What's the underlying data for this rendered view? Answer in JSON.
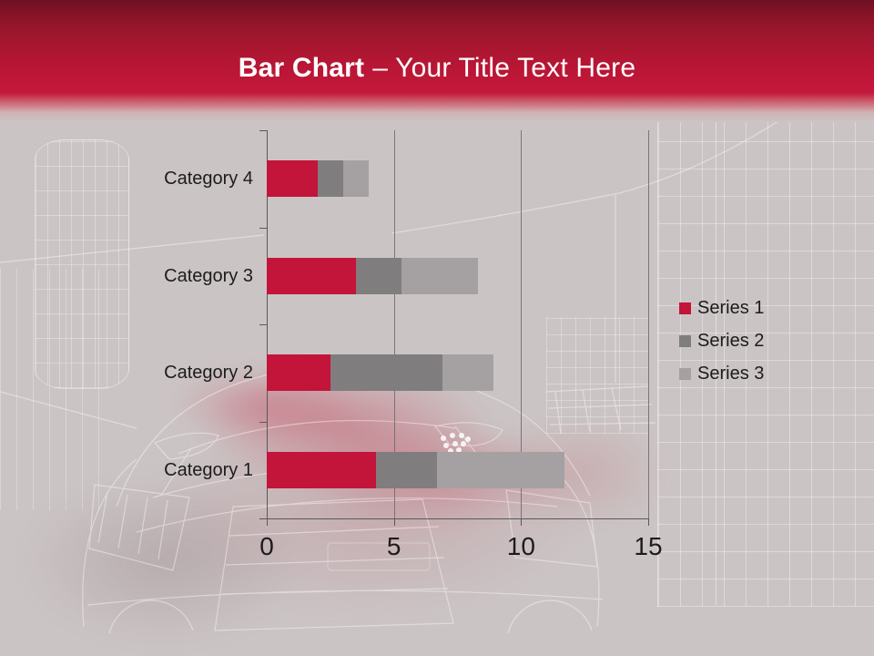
{
  "header": {
    "title_bold": "Bar Chart",
    "title_rest": "– Your Title Text Here"
  },
  "colors": {
    "banner_red": "#c21739",
    "background": "#cbc4c5",
    "axis": "#595959",
    "text": "#1c1c1c",
    "title_text": "#ffffff"
  },
  "chart_data": {
    "type": "bar",
    "orientation": "horizontal",
    "stacked": true,
    "title": "",
    "xlabel": "",
    "ylabel": "",
    "categories": [
      "Category 1",
      "Category 2",
      "Category 3",
      "Category 4"
    ],
    "category_order_top_to_bottom": [
      "Category 4",
      "Category 3",
      "Category 2",
      "Category 1"
    ],
    "series": [
      {
        "name": "Series 1",
        "color": "#c3143a",
        "values": [
          4.3,
          2.5,
          3.5,
          2
        ]
      },
      {
        "name": "Series 2",
        "color": "#807d7e",
        "values": [
          2.4,
          4.4,
          1.8,
          1
        ]
      },
      {
        "name": "Series 3",
        "color": "#a5a1a2",
        "values": [
          5,
          2,
          3,
          1
        ]
      }
    ],
    "xlim": [
      0,
      15
    ],
    "xticks": [
      0,
      5,
      10,
      15
    ],
    "gridlines": true,
    "legend_position": "right",
    "legend_entries": [
      "Series 1",
      "Series 2",
      "Series 3"
    ]
  }
}
